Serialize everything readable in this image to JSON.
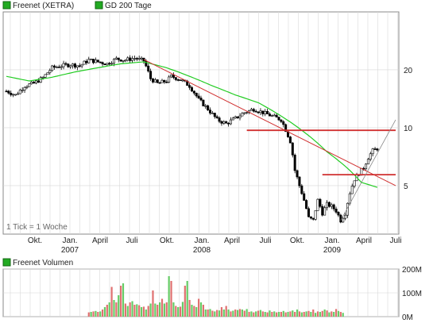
{
  "chart_data": [
    {
      "type": "candlestick",
      "legend": [
        {
          "name": "Freenet (XETRA)",
          "color": "#22aa22"
        },
        {
          "name": "GD 200 Tage",
          "color": "#22aa22"
        }
      ],
      "legend_placement": "top-left",
      "note": "1 Tick = 1 Woche",
      "y_scale": "log",
      "ylim": [
        2.8,
        40
      ],
      "y_ticks": [
        {
          "value": 20,
          "label": "20"
        },
        {
          "value": 10,
          "label": "10"
        },
        {
          "value": 5,
          "label": "5"
        }
      ],
      "x_ticks": [
        {
          "label": "Okt.",
          "year": ""
        },
        {
          "label": "Jan.",
          "year": "2007"
        },
        {
          "label": "April",
          "year": ""
        },
        {
          "label": "Juli",
          "year": ""
        },
        {
          "label": "Okt.",
          "year": ""
        },
        {
          "label": "Jan.",
          "year": "2008"
        },
        {
          "label": "April",
          "year": ""
        },
        {
          "label": "Juli",
          "year": ""
        },
        {
          "label": "Okt.",
          "year": ""
        },
        {
          "label": "Jan.",
          "year": "2009"
        },
        {
          "label": "April",
          "year": ""
        },
        {
          "label": "Juli",
          "year": ""
        }
      ],
      "grid": true,
      "price_path": [
        [
          0,
          15.5
        ],
        [
          4,
          14.8
        ],
        [
          8,
          16.5
        ],
        [
          12,
          17.0
        ],
        [
          16,
          18.2
        ],
        [
          20,
          20.5
        ],
        [
          24,
          21.0
        ],
        [
          28,
          21.3
        ],
        [
          32,
          21.0
        ],
        [
          36,
          22.5
        ],
        [
          40,
          22.0
        ],
        [
          44,
          21.5
        ],
        [
          48,
          22.8
        ],
        [
          52,
          22.5
        ],
        [
          56,
          23.0
        ],
        [
          60,
          22.3
        ],
        [
          63,
          18.0
        ],
        [
          66,
          17.0
        ],
        [
          70,
          17.5
        ],
        [
          72,
          18.5
        ],
        [
          76,
          17.8
        ],
        [
          80,
          16.5
        ],
        [
          84,
          14.0
        ],
        [
          88,
          12.5
        ],
        [
          92,
          11.0
        ],
        [
          96,
          10.5
        ],
        [
          100,
          11.2
        ],
        [
          104,
          12.0
        ],
        [
          108,
          12.5
        ],
        [
          112,
          12.0
        ],
        [
          116,
          11.5
        ],
        [
          120,
          11.0
        ],
        [
          124,
          8.5
        ],
        [
          126,
          6.0
        ],
        [
          128,
          5.0
        ],
        [
          130,
          4.2
        ],
        [
          132,
          3.4
        ],
        [
          134,
          3.3
        ],
        [
          136,
          4.2
        ],
        [
          138,
          3.6
        ],
        [
          140,
          4.0
        ],
        [
          142,
          3.9
        ],
        [
          144,
          3.7
        ],
        [
          146,
          3.3
        ],
        [
          148,
          3.6
        ],
        [
          150,
          4.6
        ],
        [
          152,
          5.4
        ],
        [
          154,
          5.8
        ],
        [
          156,
          6.2
        ],
        [
          158,
          7.0
        ],
        [
          160,
          7.6
        ],
        [
          162,
          7.8
        ]
      ],
      "ma200": [
        [
          0,
          18.5
        ],
        [
          10,
          17.5
        ],
        [
          20,
          18.3
        ],
        [
          30,
          19.5
        ],
        [
          40,
          20.5
        ],
        [
          50,
          21.5
        ],
        [
          60,
          22.0
        ],
        [
          70,
          20.5
        ],
        [
          80,
          18.5
        ],
        [
          90,
          16.5
        ],
        [
          100,
          14.8
        ],
        [
          110,
          13.5
        ],
        [
          120,
          11.5
        ],
        [
          130,
          9.5
        ],
        [
          140,
          7.5
        ],
        [
          150,
          6.0
        ],
        [
          155,
          5.2
        ],
        [
          162,
          4.9
        ]
      ],
      "red_trendlines": [
        {
          "from": [
            60,
            22.6
          ],
          "to": [
            170,
            5.0
          ]
        },
        {
          "from": [
            105,
            9.7
          ],
          "to": [
            170,
            9.7
          ]
        },
        {
          "from": [
            138,
            5.7
          ],
          "to": [
            170,
            5.7
          ]
        }
      ],
      "grey_trendline": {
        "from": [
          146,
          3.3
        ],
        "to": [
          170,
          11.0
        ]
      }
    },
    {
      "type": "bar",
      "legend": [
        {
          "name": "Freenet Volumen",
          "color": "#22aa22"
        }
      ],
      "legend_placement": "top-left",
      "ylim": [
        0,
        200
      ],
      "y_ticks": [
        {
          "value": 200,
          "label": "200M"
        },
        {
          "value": 100,
          "label": "100M"
        },
        {
          "value": 0,
          "label": "0M"
        }
      ],
      "volumes": [
        0,
        0,
        0,
        0,
        0,
        0,
        0,
        0,
        0,
        0,
        0,
        0,
        0,
        0,
        0,
        0,
        0,
        0,
        0,
        0,
        0,
        0,
        0,
        0,
        0,
        0,
        0,
        0,
        0,
        0,
        0,
        0,
        0,
        0,
        0,
        0,
        18,
        20,
        22,
        24,
        20,
        22,
        30,
        40,
        50,
        60,
        125,
        70,
        60,
        90,
        130,
        140,
        55,
        45,
        60,
        65,
        50,
        52,
        48,
        40,
        42,
        30,
        45,
        55,
        110,
        55,
        50,
        60,
        75,
        55,
        60,
        170,
        150,
        60,
        45,
        40,
        42,
        62,
        130,
        150,
        70,
        50,
        45,
        40,
        75,
        60,
        50,
        30,
        30,
        32,
        25,
        22,
        28,
        26,
        40,
        30,
        45,
        30,
        22,
        25,
        30,
        28,
        32,
        30,
        25,
        32,
        20,
        22,
        18,
        22,
        25,
        28,
        22,
        20,
        18,
        26,
        20,
        22,
        18,
        20,
        20,
        24,
        18,
        20,
        22,
        26,
        20,
        30,
        22,
        18,
        20,
        22,
        24,
        20,
        30,
        16,
        22,
        20,
        24,
        30,
        26,
        18,
        22,
        20,
        32,
        24,
        20,
        16
      ]
    }
  ]
}
